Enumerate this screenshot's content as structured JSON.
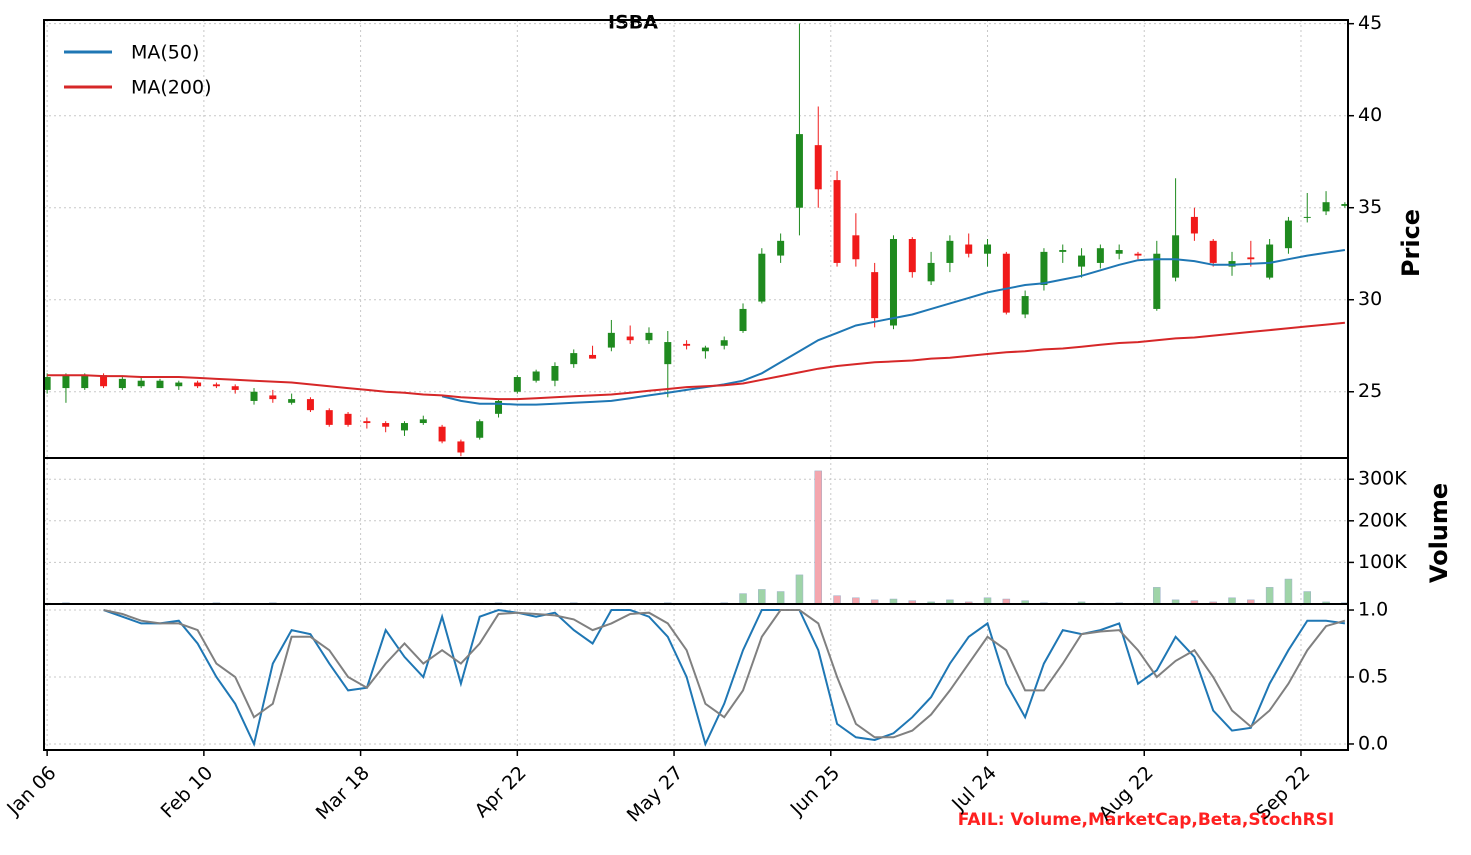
{
  "chart_data": [
    {
      "type": "candlestick",
      "title": "ISBA",
      "ylabel": "Price",
      "legend": "upper left",
      "grid": true,
      "up_color": "#1f8a1f",
      "down_color": "#f01a1a",
      "x": [
        0,
        3,
        6,
        9,
        12,
        15,
        18,
        21,
        24,
        27,
        30,
        33,
        36,
        39,
        42,
        45,
        48,
        51,
        54,
        57,
        60,
        63,
        66,
        69,
        72,
        75,
        78,
        81,
        84,
        87,
        90,
        93,
        96,
        99,
        102,
        105,
        108,
        111,
        114,
        117,
        120,
        123,
        126,
        129,
        132,
        135,
        138,
        141,
        144,
        147,
        150,
        153,
        156,
        159,
        162,
        165,
        168,
        171,
        174,
        177,
        180,
        183,
        186,
        189,
        192,
        195,
        198,
        201,
        204,
        207
      ],
      "open": [
        25.1,
        25.2,
        25.2,
        25.9,
        25.2,
        25.3,
        25.2,
        25.3,
        25.5,
        25.4,
        25.3,
        24.5,
        24.8,
        24.4,
        24.6,
        24.0,
        23.8,
        23.4,
        23.3,
        22.9,
        23.3,
        23.1,
        22.3,
        22.5,
        23.8,
        25.0,
        25.6,
        25.6,
        26.5,
        27.0,
        27.4,
        28.0,
        27.8,
        26.5,
        27.6,
        27.2,
        27.5,
        28.3,
        29.9,
        32.4,
        35.0,
        38.4,
        36.5,
        33.5,
        31.5,
        28.6,
        33.3,
        31.0,
        32.0,
        33.0,
        32.5,
        32.5,
        29.2,
        30.8,
        32.6,
        31.8,
        32.0,
        32.5,
        32.5,
        29.5,
        31.2,
        34.5,
        33.2,
        31.8,
        32.3,
        31.2,
        32.8,
        34.5,
        34.8,
        35.1
      ],
      "high": [
        26.0,
        26.0,
        26.0,
        26.0,
        25.8,
        25.8,
        25.7,
        25.6,
        25.6,
        25.5,
        25.4,
        25.2,
        25.1,
        24.9,
        24.7,
        24.1,
        23.9,
        23.6,
        23.4,
        23.4,
        23.7,
        23.2,
        22.4,
        23.5,
        24.6,
        25.9,
        26.2,
        26.6,
        27.3,
        27.5,
        28.9,
        28.6,
        28.5,
        28.3,
        27.8,
        27.5,
        28.0,
        29.8,
        32.8,
        33.6,
        45.0,
        40.5,
        37.0,
        34.7,
        32.0,
        33.5,
        33.4,
        32.6,
        33.5,
        33.6,
        33.3,
        32.6,
        30.5,
        32.8,
        33.0,
        32.8,
        33.0,
        33.0,
        32.6,
        33.2,
        36.6,
        35.0,
        33.3,
        32.6,
        33.2,
        33.3,
        34.5,
        35.8,
        35.9,
        35.3
      ],
      "low": [
        24.9,
        24.4,
        25.1,
        25.2,
        25.1,
        25.2,
        25.2,
        25.1,
        25.2,
        25.2,
        24.9,
        24.3,
        24.4,
        24.3,
        23.9,
        23.1,
        23.1,
        23.0,
        22.8,
        22.6,
        23.2,
        22.2,
        21.5,
        22.4,
        23.6,
        24.9,
        25.5,
        25.3,
        26.3,
        26.8,
        27.2,
        27.6,
        27.6,
        24.7,
        27.3,
        26.8,
        27.3,
        28.2,
        29.8,
        32.0,
        33.5,
        35.0,
        31.8,
        31.8,
        28.5,
        28.4,
        31.2,
        30.8,
        31.5,
        32.3,
        31.8,
        29.2,
        29.0,
        30.5,
        32.0,
        31.2,
        31.7,
        32.2,
        32.2,
        29.4,
        31.0,
        33.2,
        31.8,
        31.3,
        31.8,
        31.1,
        32.5,
        34.2,
        34.6,
        35.0
      ],
      "close": [
        25.8,
        25.9,
        25.9,
        25.3,
        25.7,
        25.6,
        25.6,
        25.5,
        25.3,
        25.3,
        25.1,
        25.0,
        24.6,
        24.6,
        24.0,
        23.2,
        23.2,
        23.3,
        23.1,
        23.3,
        23.5,
        22.3,
        21.7,
        23.4,
        24.5,
        25.8,
        26.1,
        26.4,
        27.1,
        26.8,
        28.2,
        27.8,
        28.2,
        27.7,
        27.5,
        27.4,
        27.8,
        29.5,
        32.5,
        33.2,
        39.0,
        36.0,
        32.0,
        32.2,
        29.0,
        33.3,
        31.5,
        32.0,
        33.2,
        32.5,
        33.0,
        29.3,
        30.2,
        32.6,
        32.7,
        32.4,
        32.8,
        32.7,
        32.4,
        32.5,
        33.5,
        33.6,
        32.0,
        32.1,
        32.2,
        33.0,
        34.3,
        34.5,
        35.3,
        35.2
      ],
      "series": [
        {
          "name": "MA(50)",
          "color": "#1f77b4",
          "values": [
            null,
            null,
            null,
            null,
            null,
            null,
            null,
            null,
            null,
            null,
            null,
            null,
            null,
            null,
            null,
            null,
            null,
            null,
            null,
            null,
            null,
            24.75,
            24.5,
            24.35,
            24.35,
            24.3,
            24.3,
            24.35,
            24.4,
            24.45,
            24.5,
            24.65,
            24.8,
            24.95,
            25.1,
            25.25,
            25.4,
            25.6,
            26.0,
            26.6,
            27.2,
            27.8,
            28.2,
            28.6,
            28.8,
            29.0,
            29.2,
            29.5,
            29.8,
            30.1,
            30.4,
            30.6,
            30.8,
            30.9,
            31.1,
            31.3,
            31.6,
            31.9,
            32.15,
            32.2,
            32.2,
            32.1,
            31.9,
            31.9,
            31.95,
            32.0,
            32.2,
            32.4,
            32.55,
            32.7
          ]
        },
        {
          "name": "MA(200)",
          "color": "#d62728",
          "values": [
            25.9,
            25.9,
            25.9,
            25.85,
            25.85,
            25.8,
            25.8,
            25.8,
            25.75,
            25.7,
            25.65,
            25.6,
            25.55,
            25.5,
            25.4,
            25.3,
            25.2,
            25.1,
            25.0,
            24.95,
            24.85,
            24.8,
            24.7,
            24.65,
            24.6,
            24.6,
            24.65,
            24.7,
            24.75,
            24.8,
            24.85,
            24.95,
            25.05,
            25.15,
            25.25,
            25.3,
            25.35,
            25.45,
            25.65,
            25.85,
            26.05,
            26.25,
            26.4,
            26.5,
            26.6,
            26.65,
            26.7,
            26.8,
            26.85,
            26.95,
            27.05,
            27.15,
            27.2,
            27.3,
            27.35,
            27.45,
            27.55,
            27.65,
            27.7,
            27.8,
            27.9,
            27.95,
            28.05,
            28.15,
            28.25,
            28.35,
            28.45,
            28.55,
            28.65,
            28.75
          ]
        }
      ],
      "ylim": [
        21.4,
        45.2
      ],
      "yticks": [
        25,
        30,
        35,
        40,
        45
      ]
    },
    {
      "type": "bar",
      "ylabel": "Volume",
      "grid": true,
      "up_color": "#9fd4a8",
      "down_color": "#f4a6ae",
      "x": [
        0,
        3,
        6,
        9,
        12,
        15,
        18,
        21,
        24,
        27,
        30,
        33,
        36,
        39,
        42,
        45,
        48,
        51,
        54,
        57,
        60,
        63,
        66,
        69,
        72,
        75,
        78,
        81,
        84,
        87,
        90,
        93,
        96,
        99,
        102,
        105,
        108,
        111,
        114,
        117,
        120,
        123,
        126,
        129,
        132,
        135,
        138,
        141,
        144,
        147,
        150,
        153,
        156,
        159,
        162,
        165,
        168,
        171,
        174,
        177,
        180,
        183,
        186,
        189,
        192,
        195,
        198,
        201,
        204,
        207
      ],
      "values": [
        2000,
        3000,
        1000,
        1000,
        2000,
        1000,
        1000,
        2000,
        1000,
        3000,
        2000,
        1000,
        3000,
        1000,
        2000,
        1000,
        1000,
        2000,
        1000,
        1000,
        2000,
        1000,
        1000,
        2000,
        3000,
        1000,
        2000,
        1000,
        3000,
        2000,
        1000,
        2000,
        1000,
        3000,
        1000,
        2000,
        3000,
        25000,
        35000,
        30000,
        70000,
        320000,
        20000,
        15000,
        10000,
        12000,
        8000,
        5000,
        10000,
        5000,
        15000,
        12000,
        8000,
        3000,
        2000,
        5000,
        2000,
        3000,
        2000,
        40000,
        10000,
        8000,
        5000,
        15000,
        10000,
        40000,
        60000,
        30000,
        5000,
        3000
      ],
      "ylim": [
        0,
        351000
      ],
      "yticks": [
        {
          "value": 100000,
          "label": "100K"
        },
        {
          "value": 200000,
          "label": "200K"
        },
        {
          "value": 300000,
          "label": "300K"
        }
      ]
    },
    {
      "type": "line",
      "grid": true,
      "annotation": "FAIL: Volume,MarketCap,Beta,StochRSI",
      "x": [
        0,
        3,
        6,
        9,
        12,
        15,
        18,
        21,
        24,
        27,
        30,
        33,
        36,
        39,
        42,
        45,
        48,
        51,
        54,
        57,
        60,
        63,
        66,
        69,
        72,
        75,
        78,
        81,
        84,
        87,
        90,
        93,
        96,
        99,
        102,
        105,
        108,
        111,
        114,
        117,
        120,
        123,
        126,
        129,
        132,
        135,
        138,
        141,
        144,
        147,
        150,
        153,
        156,
        159,
        162,
        165,
        168,
        171,
        174,
        177,
        180,
        183,
        186,
        189,
        192,
        195,
        198,
        201,
        204,
        207
      ],
      "series": [
        {
          "color": "#1f77b4",
          "values": [
            null,
            null,
            null,
            1.0,
            0.95,
            0.9,
            0.9,
            0.92,
            0.75,
            0.5,
            0.3,
            0.0,
            0.6,
            0.85,
            0.82,
            0.6,
            0.4,
            0.42,
            0.85,
            0.65,
            0.5,
            0.95,
            0.45,
            0.95,
            1.0,
            0.98,
            0.95,
            0.98,
            0.85,
            0.75,
            1.0,
            1.0,
            0.95,
            0.8,
            0.5,
            0.0,
            0.3,
            0.7,
            1.0,
            1.0,
            1.0,
            0.7,
            0.15,
            0.05,
            0.03,
            0.08,
            0.2,
            0.35,
            0.6,
            0.8,
            0.9,
            0.45,
            0.2,
            0.6,
            0.85,
            0.82,
            0.85,
            0.9,
            0.45,
            0.55,
            0.8,
            0.65,
            0.25,
            0.1,
            0.12,
            0.45,
            0.7,
            0.92,
            0.92,
            0.9
          ]
        },
        {
          "color": "#808080",
          "values": [
            null,
            null,
            null,
            1.0,
            0.97,
            0.92,
            0.9,
            0.9,
            0.85,
            0.6,
            0.5,
            0.2,
            0.3,
            0.8,
            0.8,
            0.7,
            0.5,
            0.42,
            0.6,
            0.75,
            0.6,
            0.7,
            0.6,
            0.75,
            0.97,
            0.98,
            0.97,
            0.96,
            0.93,
            0.85,
            0.9,
            0.97,
            0.98,
            0.9,
            0.7,
            0.3,
            0.2,
            0.4,
            0.8,
            1.0,
            1.0,
            0.9,
            0.5,
            0.15,
            0.05,
            0.05,
            0.1,
            0.22,
            0.4,
            0.6,
            0.8,
            0.7,
            0.4,
            0.4,
            0.6,
            0.82,
            0.84,
            0.85,
            0.7,
            0.5,
            0.62,
            0.7,
            0.5,
            0.25,
            0.13,
            0.25,
            0.45,
            0.7,
            0.88,
            0.92
          ]
        }
      ],
      "ylim": [
        -0.045,
        1.045
      ],
      "yticks": [
        {
          "value": 0,
          "label": "0.0"
        },
        {
          "value": 0.5,
          "label": "0.5"
        },
        {
          "value": 1,
          "label": "1.0"
        }
      ],
      "xlim": [
        -0.5,
        207.5
      ],
      "xticks": [
        {
          "value": 0,
          "label": "Jan 06"
        },
        {
          "value": 25,
          "label": "Feb 10"
        },
        {
          "value": 50,
          "label": "Mar 18"
        },
        {
          "value": 75,
          "label": "Apr 22"
        },
        {
          "value": 100,
          "label": "May 27"
        },
        {
          "value": 125,
          "label": "Jun 25"
        },
        {
          "value": 150,
          "label": "Jul 24"
        },
        {
          "value": 175,
          "label": "Aug 22"
        },
        {
          "value": 200,
          "label": "Sep 22"
        }
      ]
    }
  ]
}
